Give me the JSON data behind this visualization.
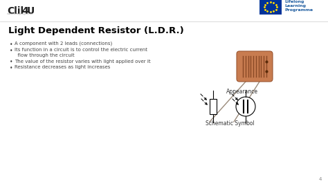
{
  "title": "Light Dependent Resistor (L.D.R.)",
  "bullet_points": [
    "A component with 2 leads (connections)",
    "Its function in a circuit is to control the electric current\n  flow through the circuit",
    "The value of the resistor varies with light applied over it",
    "Resistance decreases as light increases"
  ],
  "appearance_label": "Appearance",
  "schematic_label": "Schematic Symbol",
  "page_number": "4",
  "bg_color": "#ffffff",
  "title_color": "#000000",
  "text_color": "#444444",
  "logo_blue": "#1F5DA0",
  "ldr_body_color": "#c87c50",
  "ldr_stripe_color": "#7a3c1a",
  "ldr_lead_color": "#9a8a7a"
}
